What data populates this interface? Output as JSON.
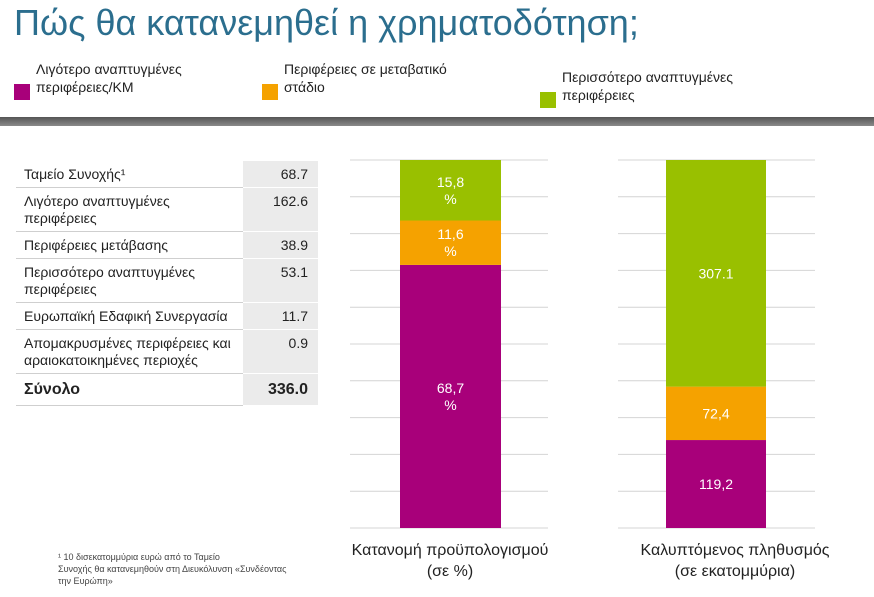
{
  "title": "Πώς θα κατανεμηθεί η χρηματοδότηση;",
  "legend": [
    {
      "label": "Λιγότερο αναπτυγμένες\nπεριφέρειες/ΚΜ",
      "color": "#a8007a"
    },
    {
      "label": "Περιφέρειες σε μεταβατικό\nστάδιο",
      "color": "#f5a200"
    },
    {
      "label": "Περισσότερο αναπτυγμένες\nπεριφέρειες",
      "color": "#99c000"
    }
  ],
  "table": {
    "rows": [
      {
        "label": "Ταμείο Συνοχής¹",
        "value": "68.7"
      },
      {
        "label": "Λιγότερο αναπτυγμένες περιφέρειες",
        "value": "162.6"
      },
      {
        "label": "Περιφέρειες μετάβασης",
        "value": "38.9"
      },
      {
        "label": "Περισσότερο αναπτυγμένες περιφέρειες",
        "value": "53.1"
      },
      {
        "label": "Ευρωπαϊκή Εδαφική Συνεργασία",
        "value": "11.7"
      },
      {
        "label": "Απομακρυσμένες περιφέρειες και αραιοκατοικημένες περιοχές",
        "value": "0.9"
      }
    ],
    "total": {
      "label": "Σύνολο",
      "value": "336.0"
    }
  },
  "footnote": "¹ 10 δισεκατομμύρια ευρώ από το Ταμείο\nΣυνοχής θα κατανεμηθούν στη Διευκόλυνση «Συνδέοντας\nτην Ευρώπη»",
  "chart_data": [
    {
      "type": "bar",
      "stacked": true,
      "caption": "Κατανομή προϋπολογισμού\n(σε %)",
      "segments": [
        {
          "value": 68.7,
          "label": "68,7\n%",
          "color": "#a8007a"
        },
        {
          "value": 11.6,
          "label": "11,6\n%",
          "color": "#f5a200"
        },
        {
          "value": 15.8,
          "label": "15,8\n%",
          "color": "#99c000"
        }
      ],
      "grid": true
    },
    {
      "type": "bar",
      "stacked": true,
      "caption": "Καλυπτόμενος πληθυσμός\n(σε εκατομμύρια)",
      "segments": [
        {
          "value": 119.2,
          "label": "119,2",
          "color": "#a8007a"
        },
        {
          "value": 72.4,
          "label": "72,4",
          "color": "#f5a200"
        },
        {
          "value": 307.1,
          "label": "307.1",
          "color": "#99c000"
        }
      ],
      "grid": true
    }
  ]
}
